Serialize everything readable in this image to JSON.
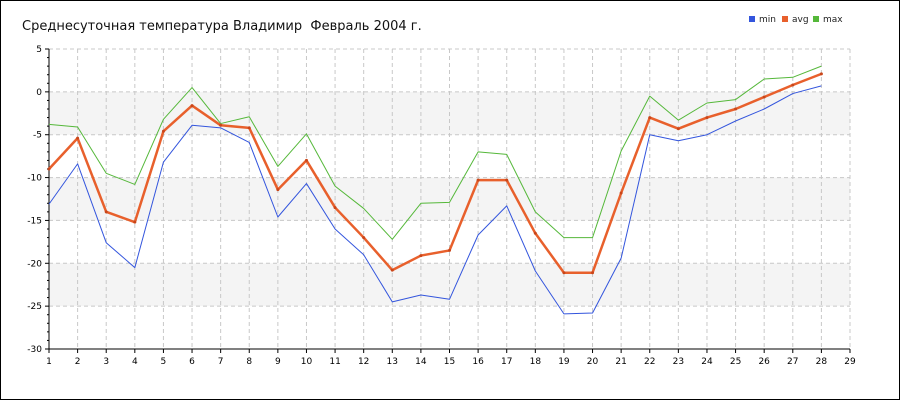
{
  "chart_data": {
    "type": "line",
    "title": "Среднесуточная температура Владимир  Февраль 2004 г.",
    "xlabel": "",
    "ylabel": "",
    "x": [
      1,
      2,
      3,
      4,
      5,
      6,
      7,
      8,
      9,
      10,
      11,
      12,
      13,
      14,
      15,
      16,
      17,
      18,
      19,
      20,
      21,
      22,
      23,
      24,
      25,
      26,
      27,
      28
    ],
    "x_ticks": [
      1,
      2,
      3,
      4,
      5,
      6,
      7,
      8,
      9,
      10,
      11,
      12,
      13,
      14,
      15,
      16,
      17,
      18,
      19,
      20,
      21,
      22,
      23,
      24,
      25,
      26,
      27,
      28,
      29
    ],
    "y_ticks": [
      5,
      0,
      -5,
      -10,
      -15,
      -20,
      -25,
      -30
    ],
    "xlim": [
      1,
      29
    ],
    "ylim": [
      -30,
      5
    ],
    "grid": true,
    "legend_position": "top-right",
    "series": [
      {
        "name": "min",
        "color": "#3355dd",
        "values": [
          -13.1,
          -8.4,
          -17.6,
          -20.5,
          -8.2,
          -3.9,
          -4.2,
          -5.9,
          -14.6,
          -10.7,
          -16.0,
          -19.0,
          -24.5,
          -23.7,
          -24.2,
          -16.7,
          -13.3,
          -20.9,
          -25.9,
          -25.8,
          -19.4,
          -5.0,
          -5.7,
          -5.0,
          -3.4,
          -2.0,
          -0.2,
          0.7
        ]
      },
      {
        "name": "avg",
        "color": "#e8602c",
        "values": [
          -9.0,
          -5.4,
          -14.0,
          -15.2,
          -4.6,
          -1.6,
          -3.9,
          -4.2,
          -11.4,
          -8.0,
          -13.5,
          -17.0,
          -20.8,
          -19.1,
          -18.5,
          -10.3,
          -10.3,
          -16.5,
          -21.1,
          -21.1,
          -11.8,
          -3.0,
          -4.3,
          -3.0,
          -2.0,
          -0.6,
          0.8,
          2.1
        ]
      },
      {
        "name": "max",
        "color": "#55b83a",
        "values": [
          -3.8,
          -4.1,
          -9.5,
          -10.8,
          -3.2,
          0.5,
          -3.7,
          -2.9,
          -8.7,
          -4.9,
          -11.0,
          -13.6,
          -17.2,
          -13.0,
          -12.9,
          -7.0,
          -7.3,
          -14.0,
          -17.0,
          -17.0,
          -6.9,
          -0.5,
          -3.3,
          -1.3,
          -0.9,
          1.5,
          1.7,
          3.0
        ]
      }
    ]
  }
}
